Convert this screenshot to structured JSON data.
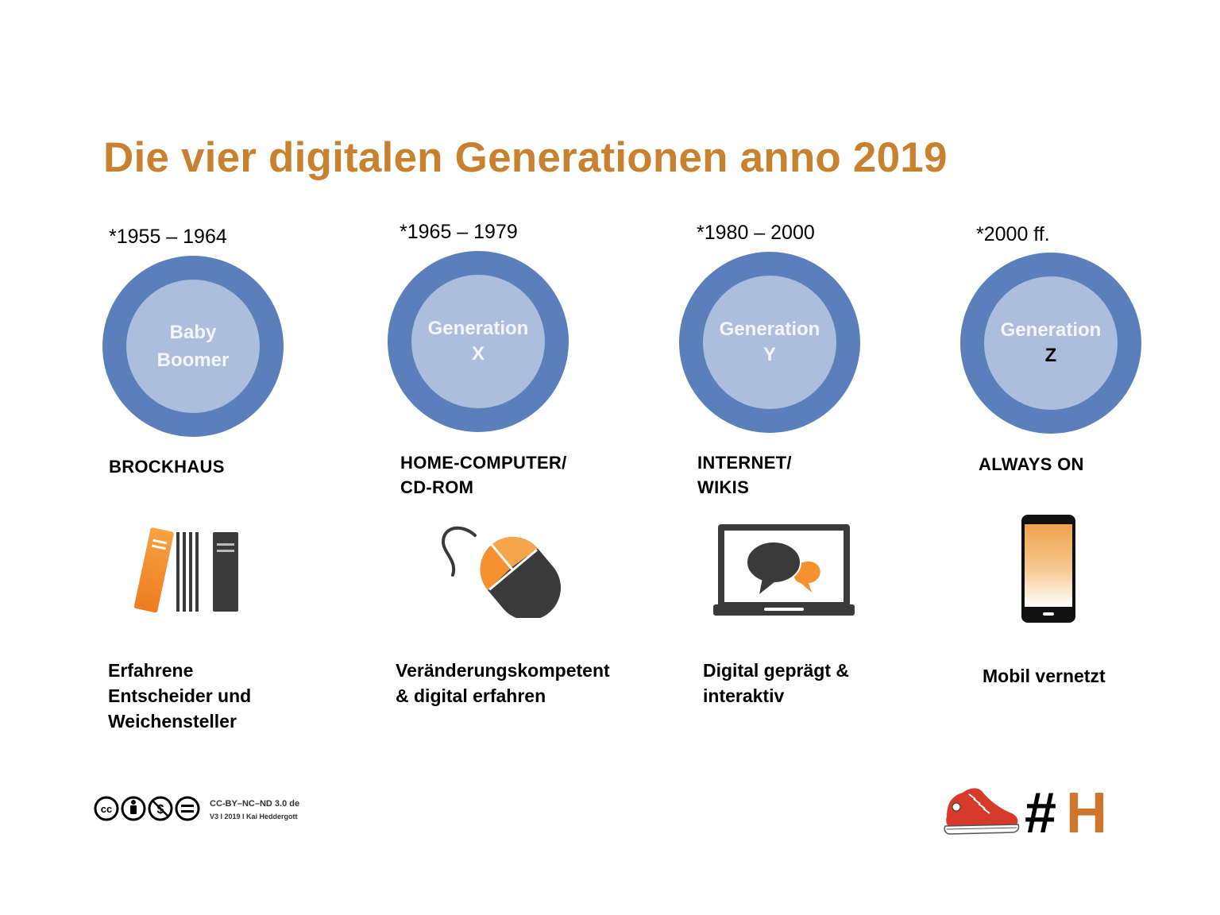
{
  "title": "Die vier digitalen Generationen anno 2019",
  "generations": [
    {
      "years": "*1955 – 1964",
      "name_line1": "Baby",
      "name_line2": "Boomer",
      "media": "BROCKHAUS",
      "icon": "books-icon",
      "description": "Erfahrene\nEntscheider und\nWeichensteller"
    },
    {
      "years": "*1965 – 1979",
      "name_line1": "Generation",
      "name_line2": "X",
      "media": "HOME-COMPUTER/\nCD-ROM",
      "icon": "mouse-icon",
      "description": "Veränderungskompetent\n& digital erfahren"
    },
    {
      "years": "*1980 – 2000",
      "name_line1": "Generation",
      "name_line2": "Y",
      "media": "INTERNET/\nWIKIS",
      "icon": "laptop-chat-icon",
      "description": "Digital geprägt &\ninteraktiv"
    },
    {
      "years": "*2000 ff.",
      "name_line1": "Generation",
      "name_line2": "Z",
      "media": "ALWAYS ON",
      "icon": "smartphone-icon",
      "description": "Mobil vernetzt"
    }
  ],
  "license": {
    "line1": "CC-BY–NC–ND 3.0 de",
    "line2": "V3 I 2019 I Kai Heddergott",
    "icons": [
      "cc-icon",
      "by-icon",
      "nc-icon",
      "nd-icon"
    ]
  },
  "logo": {
    "symbol": "#",
    "letter": "H",
    "icon": "sneaker-icon"
  },
  "colors": {
    "title": "#c8822f",
    "ring_outer": "#5b7fba",
    "ring_inner": "#abbfdc",
    "accent_orange": "#f08a2c",
    "icon_dark": "#3a3a3a",
    "logo_letter": "#d0762c"
  }
}
